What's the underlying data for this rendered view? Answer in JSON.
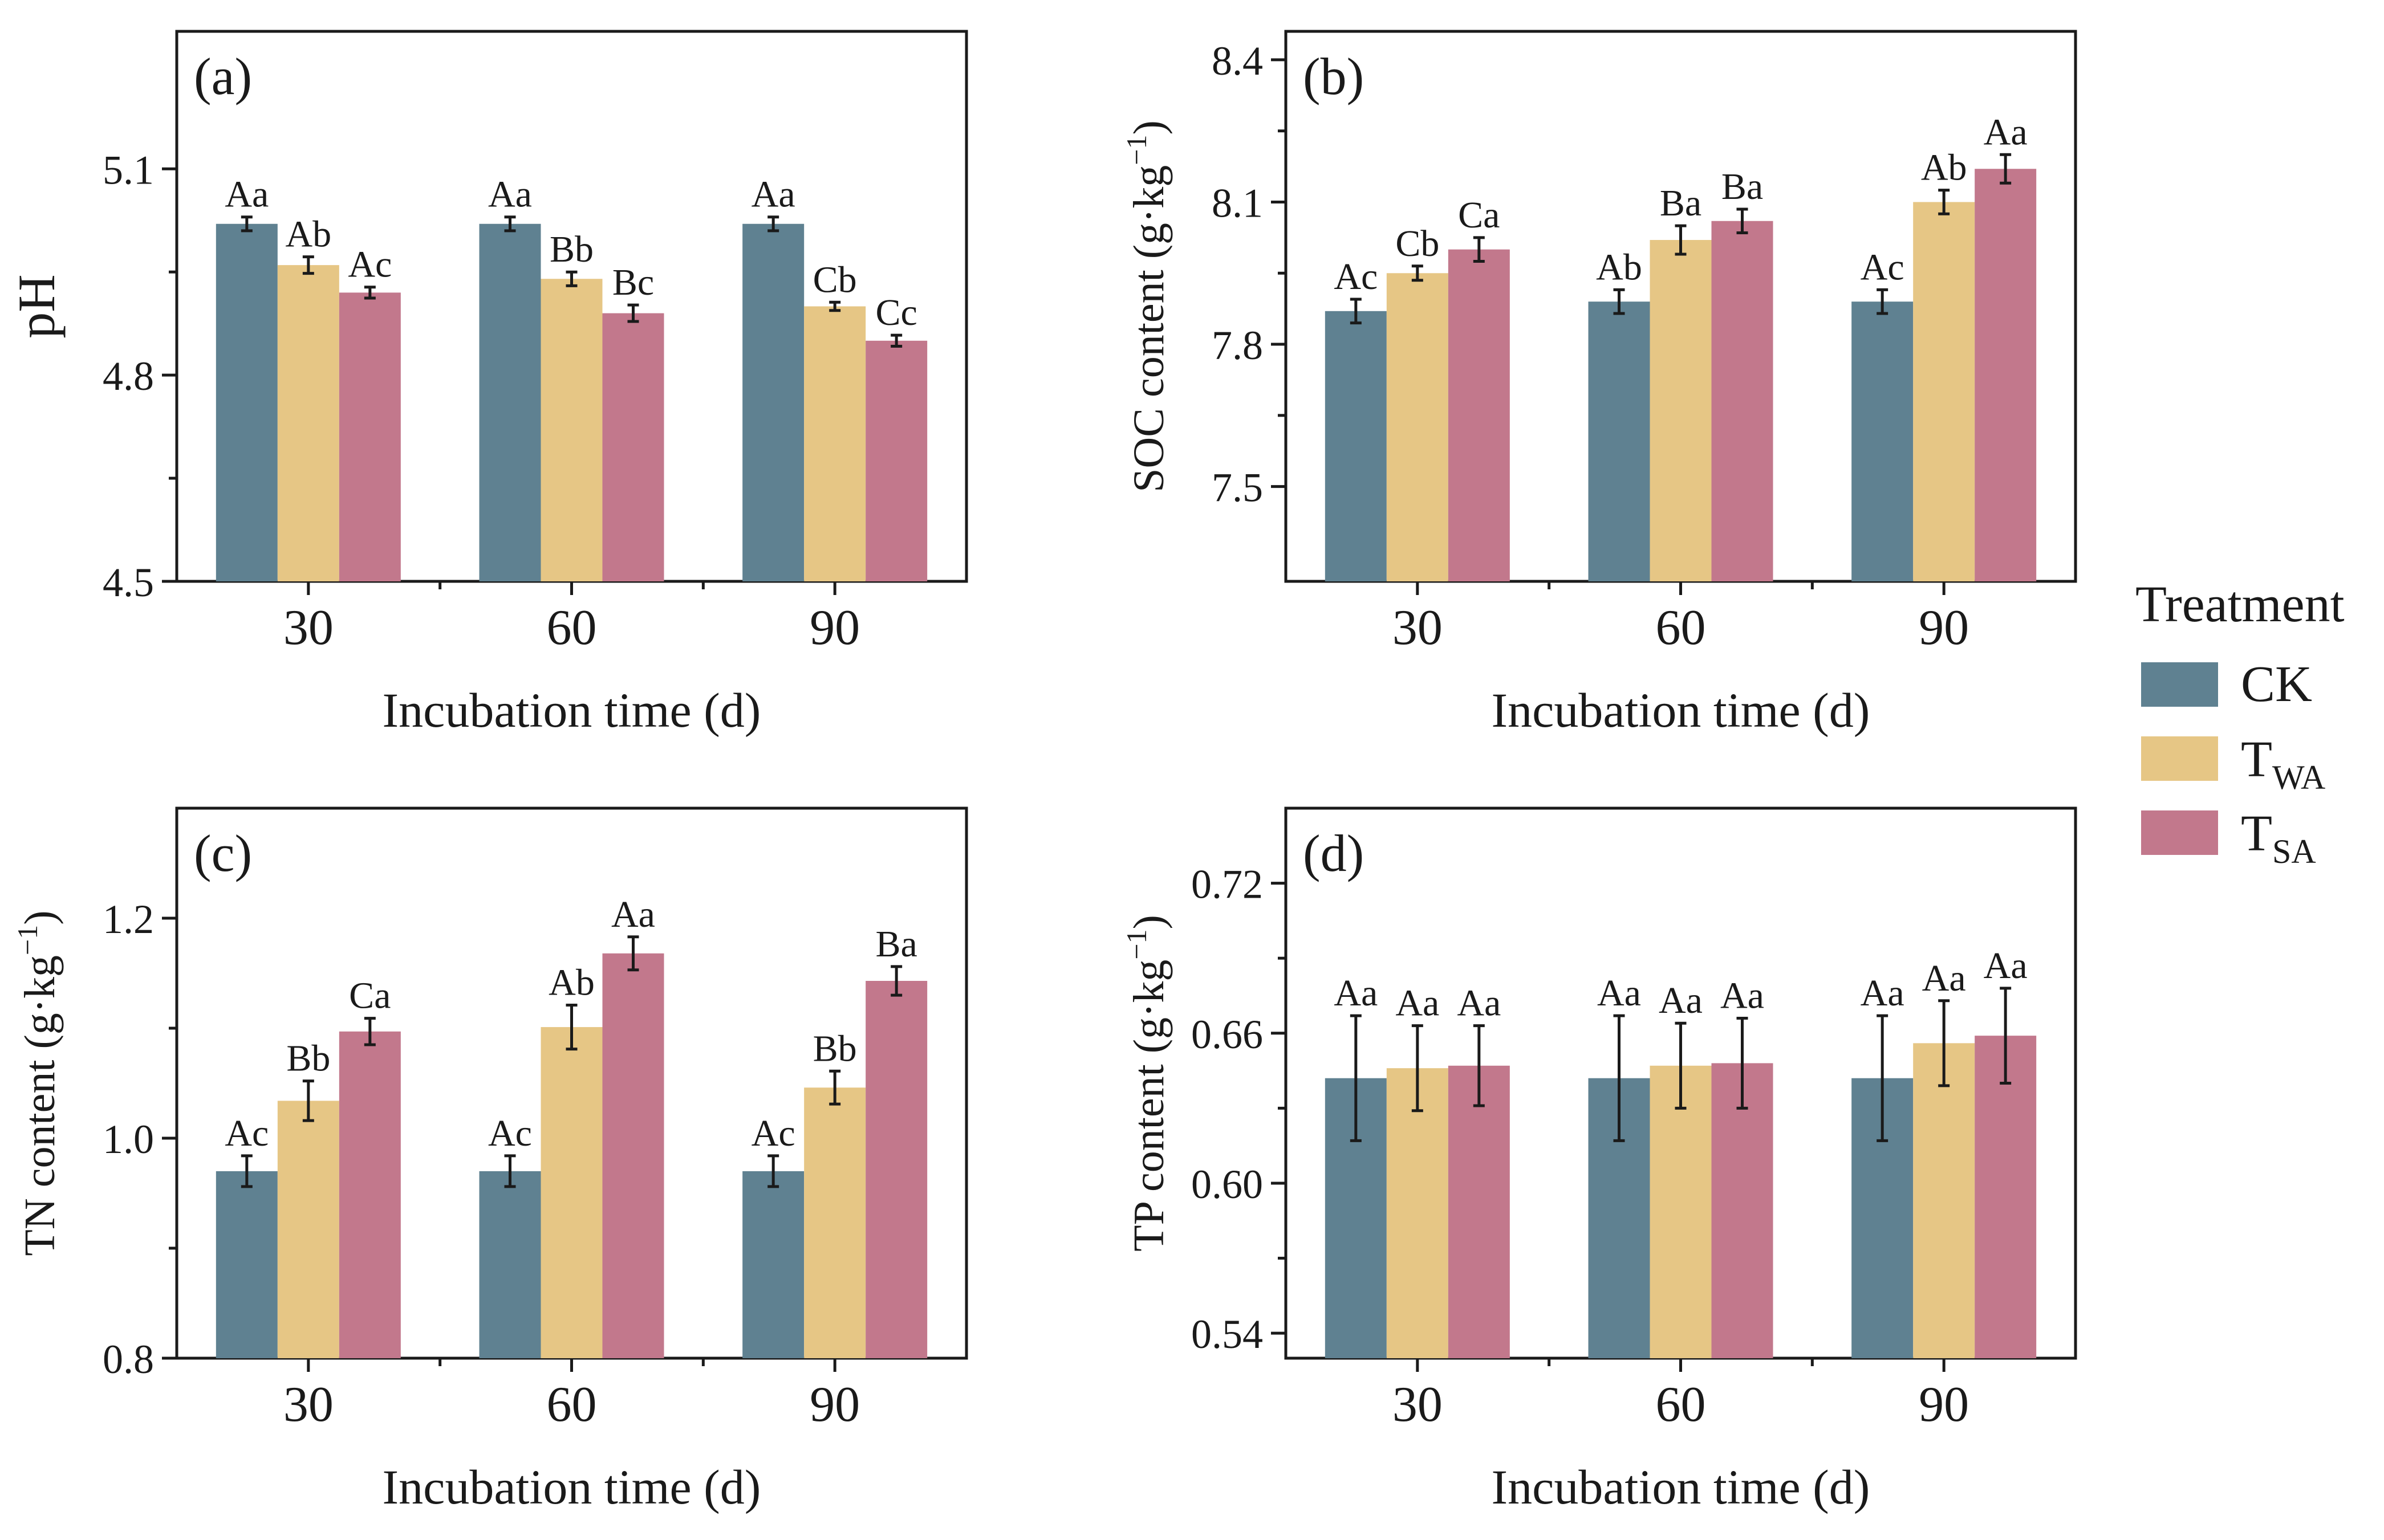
{
  "legend": {
    "title": "Treatment",
    "items": [
      {
        "label": "CK",
        "color": "#5f8191"
      },
      {
        "label": "T",
        "sub": "WA",
        "color": "#e6c685"
      },
      {
        "label": "T",
        "sub": "SA",
        "color": "#c2788c"
      }
    ]
  },
  "chart_data": [
    {
      "type": "bar",
      "panel": "(a)",
      "xlabel": "Incubation time (d)",
      "ylabel": "pH",
      "ylim": [
        4.5,
        5.3
      ],
      "yticks": [
        "4.5",
        "4.8",
        "5.1"
      ],
      "categories": [
        "30",
        "60",
        "90"
      ],
      "series": [
        {
          "name": "CK",
          "values": [
            5.02,
            5.02,
            5.02
          ],
          "err": [
            0.01,
            0.01,
            0.01
          ],
          "labels": [
            "Aa",
            "Aa",
            "Aa"
          ]
        },
        {
          "name": "TWA",
          "values": [
            4.96,
            4.94,
            4.9
          ],
          "err": [
            0.012,
            0.01,
            0.006
          ],
          "labels": [
            "Ab",
            "Bb",
            "Cb"
          ]
        },
        {
          "name": "TSA",
          "values": [
            4.92,
            4.89,
            4.85
          ],
          "err": [
            0.008,
            0.012,
            0.008
          ],
          "labels": [
            "Ac",
            "Bc",
            "Cc"
          ]
        }
      ]
    },
    {
      "type": "bar",
      "panel": "(b)",
      "xlabel": "Incubation time (d)",
      "ylabel": "SOC content (g·kg",
      "ylabel_sup": "−1",
      "ylabel_tail": ")",
      "ylim": [
        7.3,
        8.46
      ],
      "yticks": [
        "7.5",
        "7.8",
        "8.1",
        "8.4"
      ],
      "categories": [
        "30",
        "60",
        "90"
      ],
      "series": [
        {
          "name": "CK",
          "values": [
            7.87,
            7.89,
            7.89
          ],
          "err": [
            0.025,
            0.025,
            0.025
          ],
          "labels": [
            "Ac",
            "Ab",
            "Ac"
          ]
        },
        {
          "name": "TWA",
          "values": [
            7.95,
            8.02,
            8.1
          ],
          "err": [
            0.015,
            0.03,
            0.025
          ],
          "labels": [
            "Cb",
            "Ba",
            "Ab"
          ]
        },
        {
          "name": "TSA",
          "values": [
            8.0,
            8.06,
            8.17
          ],
          "err": [
            0.025,
            0.025,
            0.03
          ],
          "labels": [
            "Ca",
            "Ba",
            "Aa"
          ]
        }
      ]
    },
    {
      "type": "bar",
      "panel": "(c)",
      "xlabel": "Incubation time (d)",
      "ylabel": "TN content (g·kg",
      "ylabel_sup": "−1",
      "ylabel_tail": ")",
      "ylim": [
        0.8,
        1.3
      ],
      "yticks": [
        "0.8",
        "1.0",
        "1.2"
      ],
      "categories": [
        "30",
        "60",
        "90"
      ],
      "series": [
        {
          "name": "CK",
          "values": [
            0.97,
            0.97,
            0.97
          ],
          "err": [
            0.014,
            0.014,
            0.014
          ],
          "labels": [
            "Ac",
            "Ac",
            "Ac"
          ]
        },
        {
          "name": "TWA",
          "values": [
            1.034,
            1.101,
            1.046
          ],
          "err": [
            0.018,
            0.02,
            0.015
          ],
          "labels": [
            "Bb",
            "Ab",
            "Bb"
          ]
        },
        {
          "name": "TSA",
          "values": [
            1.097,
            1.168,
            1.143
          ],
          "err": [
            0.012,
            0.015,
            0.013
          ],
          "labels": [
            "Ca",
            "Aa",
            "Ba"
          ]
        }
      ]
    },
    {
      "type": "bar",
      "panel": "(d)",
      "xlabel": "Incubation time (d)",
      "ylabel": "TP content (g·kg",
      "ylabel_sup": "−1",
      "ylabel_tail": ")",
      "ylim": [
        0.53,
        0.75
      ],
      "yticks": [
        "0.54",
        "0.60",
        "0.66",
        "0.72"
      ],
      "categories": [
        "30",
        "60",
        "90"
      ],
      "series": [
        {
          "name": "CK",
          "values": [
            0.642,
            0.642,
            0.642
          ],
          "err": [
            0.025,
            0.025,
            0.025
          ],
          "labels": [
            "Aa",
            "Aa",
            "Aa"
          ]
        },
        {
          "name": "TWA",
          "values": [
            0.646,
            0.647,
            0.656
          ],
          "err": [
            0.017,
            0.017,
            0.017
          ],
          "labels": [
            "Aa",
            "Aa",
            "Aa"
          ]
        },
        {
          "name": "TSA",
          "values": [
            0.647,
            0.648,
            0.659
          ],
          "err": [
            0.016,
            0.018,
            0.019
          ],
          "labels": [
            "Aa",
            "Aa",
            "Aa"
          ]
        }
      ]
    }
  ]
}
